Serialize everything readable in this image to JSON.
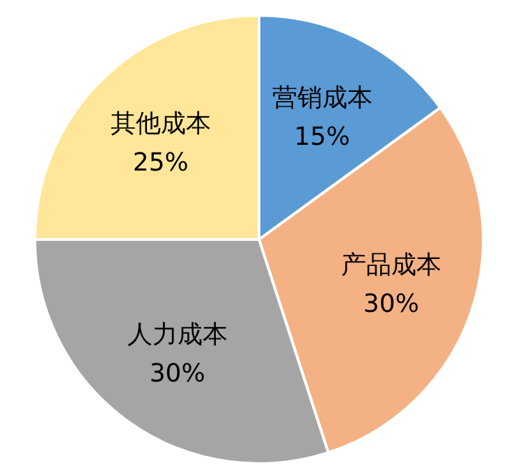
{
  "chart_data": {
    "type": "pie",
    "categories": [
      "营销成本",
      "产品成本",
      "人力成本",
      "其他成本"
    ],
    "values": [
      15,
      30,
      30,
      25
    ],
    "colors": [
      "#5b9bd5",
      "#f4b183",
      "#a5a5a5",
      "#ffe699"
    ],
    "value_labels": [
      "15%",
      "30%",
      "30%",
      "25%"
    ]
  }
}
